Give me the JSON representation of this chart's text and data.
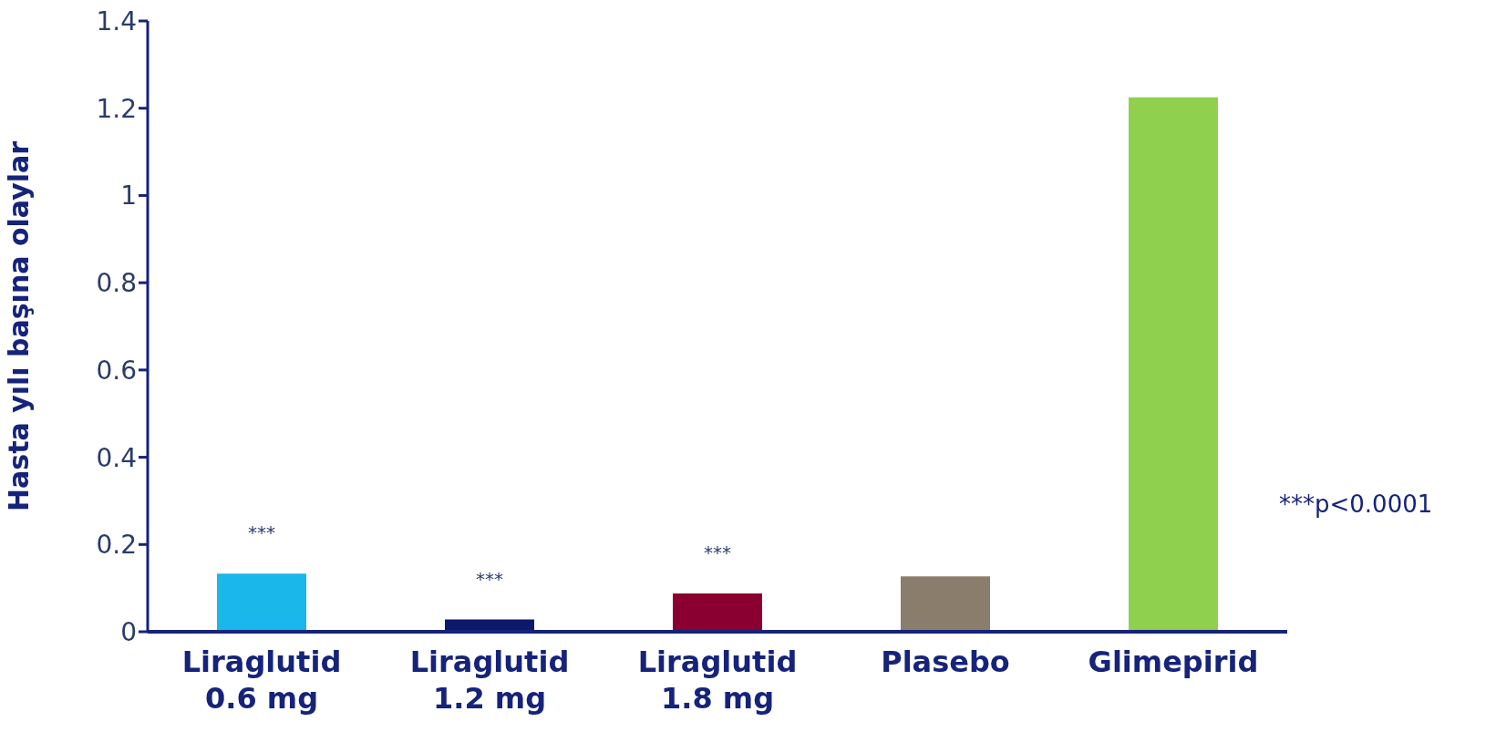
{
  "chart_data": {
    "type": "bar",
    "ylabel": "Hasta yılı başına olaylar",
    "categories": [
      "Liraglutid 0.6 mg",
      "Liraglutid 1.2 mg",
      "Liraglutid 1.8 mg",
      "Plasebo",
      "Glimepirid"
    ],
    "values": [
      0.133,
      0.028,
      0.088,
      0.127,
      1.225
    ],
    "colors": [
      "#1ab7ea",
      "#0d1a6b",
      "#8a0030",
      "#8b7d6b",
      "#8fd14f"
    ],
    "ylim": [
      0,
      1.4
    ],
    "yticks": [
      0,
      0.2,
      0.4,
      0.6,
      0.8,
      1,
      1.2,
      1.4
    ],
    "grid": false,
    "legend": false,
    "value_labels": [
      "***",
      "***",
      "***",
      null,
      null
    ],
    "annotations": [
      "***p<0.0001"
    ]
  }
}
